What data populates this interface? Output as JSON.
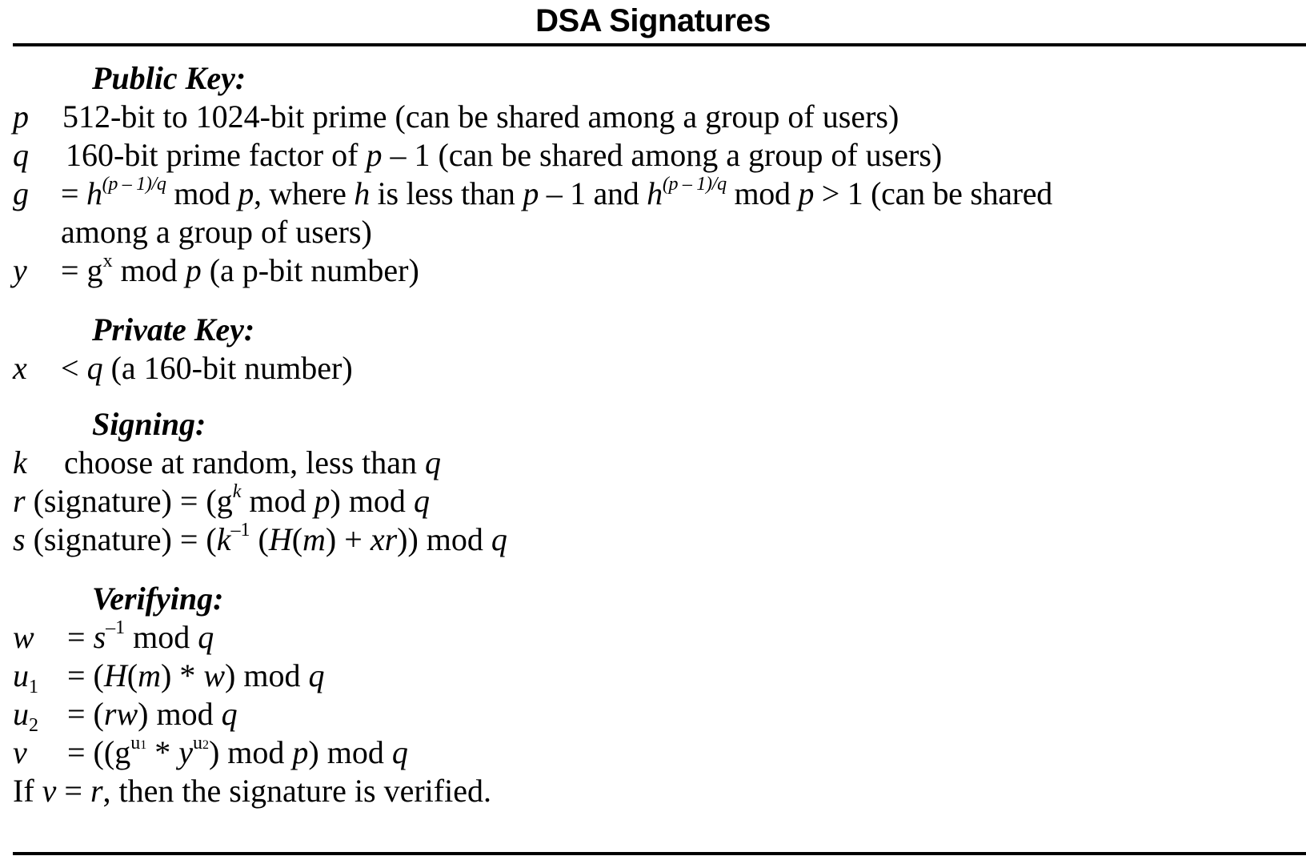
{
  "title": "DSA Signatures",
  "public_key": {
    "heading": "Public Key:",
    "p_symbol": "p",
    "p_text": "512-bit to 1024-bit prime (can be shared among a group of users)",
    "q_symbol": "q",
    "q_text_1": "160-bit prime factor of ",
    "q_text_p": "p",
    "q_text_2": " – 1 (can be shared among a group of users)",
    "g_symbol": "g",
    "g_eq": "= ",
    "g_h": "h",
    "g_exp": "(p – 1)/q",
    "g_mid1": " mod ",
    "g_p": "p",
    "g_mid2": ", where ",
    "g_h2": "h",
    "g_mid3": " is less than ",
    "g_p2": "p",
    "g_mid4": " – 1 and ",
    "g_h3": "h",
    "g_exp2": "(p – 1)/q",
    "g_mid5": " mod ",
    "g_p3": "p",
    "g_mid6": " > 1 (can be shared",
    "g_line2": "among a group of users)",
    "y_symbol": "y",
    "y_eq": "= g",
    "y_exp": "x",
    "y_mid": " mod ",
    "y_p": "p",
    "y_tail": " (a p-bit number)"
  },
  "private_key": {
    "heading": "Private Key:",
    "x_symbol": "x",
    "x_lt": "< ",
    "x_q": "q",
    "x_tail": " (a 160-bit number)"
  },
  "signing": {
    "heading": "Signing:",
    "k_symbol": "k",
    "k_text": "choose at random, less than ",
    "k_q": "q",
    "r_symbol": "r",
    "r_text1": " (signature) = (g",
    "r_exp": "k",
    "r_text2": " mod ",
    "r_p": "p",
    "r_text3": ") mod ",
    "r_q": "q",
    "s_symbol": "s",
    "s_text1": " (signature) = (",
    "s_k": "k",
    "s_exp": "–1",
    "s_text2": " (",
    "s_H": "H",
    "s_text3": "(",
    "s_m": "m",
    "s_text4": ") + ",
    "s_xr": "xr",
    "s_text5": ")) mod ",
    "s_q": "q"
  },
  "verifying": {
    "heading": "Verifying:",
    "w_symbol": "w",
    "w_eq": "= ",
    "w_s": "s",
    "w_exp": "–1",
    "w_mid": " mod ",
    "w_q": "q",
    "u1_symbol": "u",
    "u1_sub": "1",
    "u1_eq": "= (",
    "u1_H": "H",
    "u1_t1": "(",
    "u1_m": "m",
    "u1_t2": ") * ",
    "u1_w": "w",
    "u1_t3": ") mod ",
    "u1_q": "q",
    "u2_symbol": "u",
    "u2_sub": "2",
    "u2_eq": "= (",
    "u2_rw": "rw",
    "u2_t1": ") mod ",
    "u2_q": "q",
    "v_symbol": "v",
    "v_eq": "= ((g",
    "v_exp1": "u",
    "v_sub1": "1",
    "v_t1": " * ",
    "v_y": "y",
    "v_exp2": "u",
    "v_sub2": "2",
    "v_t2": ") mod ",
    "v_p": "p",
    "v_t3": ") mod ",
    "v_q": "q",
    "final_1": "If ",
    "final_v": "v",
    "final_2": " = ",
    "final_r": "r",
    "final_3": ", then the signature is verified."
  }
}
